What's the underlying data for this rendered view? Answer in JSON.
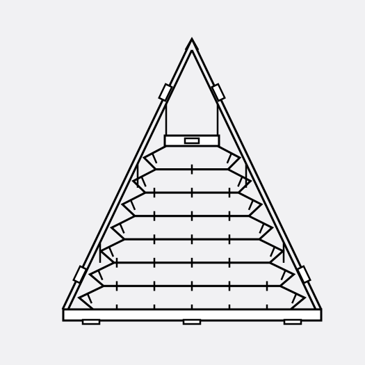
{
  "image": {
    "subject": "pleated-blind-triangle-icon",
    "colors": {
      "background": "#f1f1f3",
      "stroke": "#000000",
      "fill": "#ffffff"
    },
    "pleat_count": 7,
    "bracket_count": 4,
    "base_clip_count": 3
  }
}
